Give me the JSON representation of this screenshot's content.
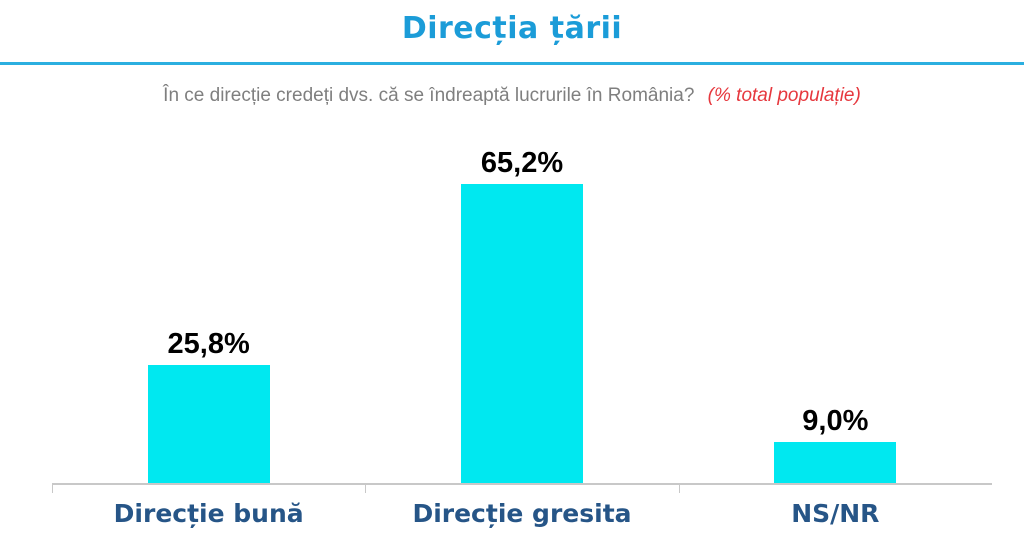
{
  "page": {
    "title": "Direcția țării",
    "question": "În ce direcție credeți dvs. că se îndreaptă lucrurile în România?",
    "question_note": "(% total populație)"
  },
  "colors": {
    "title_blue": "#1b9cd8",
    "divider_blue": "#2bafe0",
    "subtitle_gray": "#7f7f7f",
    "note_red": "#e6383e",
    "bar_cyan": "#00e8f0",
    "value_black": "#000000",
    "category_label_blue": "#265587",
    "axis_gray": "#c8c8c8"
  },
  "chart_data": {
    "type": "bar",
    "title": "Direcția țării",
    "subtitle": "În ce direcție credeți dvs. că se îndreaptă lucrurile în România? (% total populație)",
    "categories": [
      "Direcție bună",
      "Direcție gresita",
      "NS/NR"
    ],
    "values": [
      25.8,
      65.2,
      9.0
    ],
    "value_labels": [
      "25,8%",
      "65,2%",
      "9,0%"
    ],
    "unit": "% total populație",
    "ylim": [
      0,
      70
    ],
    "grid": false,
    "legend": false,
    "bar_color": "#00e8f0",
    "axis_ticks_x_boundaries": true
  }
}
